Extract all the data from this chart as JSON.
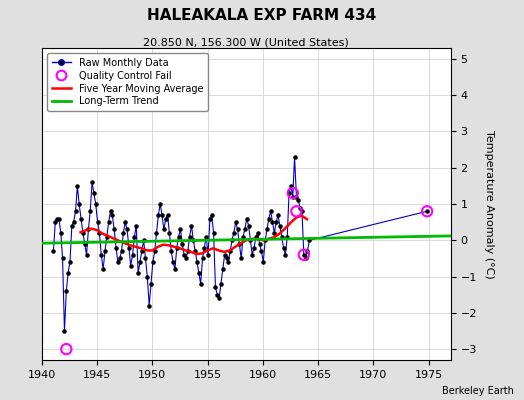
{
  "title": "HALEAKALA EXP FARM 434",
  "subtitle": "20.850 N, 156.300 W (United States)",
  "ylabel": "Temperature Anomaly (°C)",
  "credit": "Berkeley Earth",
  "xlim": [
    1940,
    1977
  ],
  "ylim": [
    -3.3,
    5.3
  ],
  "yticks": [
    -3,
    -2,
    -1,
    0,
    1,
    2,
    3,
    4,
    5
  ],
  "xticks": [
    1940,
    1945,
    1950,
    1955,
    1960,
    1965,
    1970,
    1975
  ],
  "bg_color": "#e0e0e0",
  "plot_bg_color": "#ffffff",
  "raw_color": "#0000cc",
  "raw_marker_color": "#000000",
  "qc_color": "#ff00ff",
  "ma_color": "#ff0000",
  "trend_color": "#00bb00",
  "raw_monthly": [
    [
      1941.04,
      -0.3
    ],
    [
      1941.21,
      0.5
    ],
    [
      1941.37,
      0.6
    ],
    [
      1941.54,
      0.6
    ],
    [
      1941.71,
      0.2
    ],
    [
      1941.87,
      -0.5
    ],
    [
      1942.04,
      -2.5
    ],
    [
      1942.21,
      -1.4
    ],
    [
      1942.37,
      -0.9
    ],
    [
      1942.54,
      -0.6
    ],
    [
      1942.71,
      0.4
    ],
    [
      1942.87,
      0.5
    ],
    [
      1943.04,
      0.8
    ],
    [
      1943.21,
      1.5
    ],
    [
      1943.37,
      1.0
    ],
    [
      1943.54,
      0.6
    ],
    [
      1943.71,
      0.2
    ],
    [
      1943.87,
      -0.1
    ],
    [
      1944.04,
      -0.4
    ],
    [
      1944.21,
      0.3
    ],
    [
      1944.37,
      0.8
    ],
    [
      1944.54,
      1.6
    ],
    [
      1944.71,
      1.3
    ],
    [
      1944.87,
      1.0
    ],
    [
      1945.04,
      0.5
    ],
    [
      1945.21,
      0.2
    ],
    [
      1945.37,
      -0.4
    ],
    [
      1945.54,
      -0.8
    ],
    [
      1945.71,
      -0.3
    ],
    [
      1945.87,
      0.1
    ],
    [
      1946.04,
      0.5
    ],
    [
      1946.21,
      0.8
    ],
    [
      1946.37,
      0.7
    ],
    [
      1946.54,
      0.3
    ],
    [
      1946.71,
      -0.2
    ],
    [
      1946.87,
      -0.6
    ],
    [
      1947.04,
      -0.5
    ],
    [
      1947.21,
      -0.3
    ],
    [
      1947.37,
      0.2
    ],
    [
      1947.54,
      0.5
    ],
    [
      1947.71,
      0.3
    ],
    [
      1947.87,
      -0.2
    ],
    [
      1948.04,
      -0.7
    ],
    [
      1948.21,
      -0.4
    ],
    [
      1948.37,
      0.1
    ],
    [
      1948.54,
      0.4
    ],
    [
      1948.71,
      -0.9
    ],
    [
      1948.87,
      -0.6
    ],
    [
      1949.04,
      -0.3
    ],
    [
      1949.21,
      0.0
    ],
    [
      1949.37,
      -0.5
    ],
    [
      1949.54,
      -1.0
    ],
    [
      1949.71,
      -1.8
    ],
    [
      1949.87,
      -1.2
    ],
    [
      1950.04,
      -0.6
    ],
    [
      1950.21,
      -0.3
    ],
    [
      1950.37,
      0.2
    ],
    [
      1950.54,
      0.7
    ],
    [
      1950.71,
      1.0
    ],
    [
      1950.87,
      0.7
    ],
    [
      1951.04,
      0.3
    ],
    [
      1951.21,
      0.6
    ],
    [
      1951.37,
      0.7
    ],
    [
      1951.54,
      0.2
    ],
    [
      1951.71,
      -0.3
    ],
    [
      1951.87,
      -0.6
    ],
    [
      1952.04,
      -0.8
    ],
    [
      1952.21,
      -0.2
    ],
    [
      1952.37,
      0.1
    ],
    [
      1952.54,
      0.3
    ],
    [
      1952.71,
      -0.1
    ],
    [
      1952.87,
      -0.4
    ],
    [
      1953.04,
      -0.5
    ],
    [
      1953.21,
      -0.3
    ],
    [
      1953.37,
      0.1
    ],
    [
      1953.54,
      0.4
    ],
    [
      1953.71,
      0.0
    ],
    [
      1953.87,
      -0.3
    ],
    [
      1954.04,
      -0.6
    ],
    [
      1954.21,
      -0.9
    ],
    [
      1954.37,
      -1.2
    ],
    [
      1954.54,
      -0.5
    ],
    [
      1954.71,
      -0.2
    ],
    [
      1954.87,
      0.1
    ],
    [
      1955.04,
      -0.4
    ],
    [
      1955.21,
      0.6
    ],
    [
      1955.37,
      0.7
    ],
    [
      1955.54,
      0.2
    ],
    [
      1955.71,
      -1.3
    ],
    [
      1955.87,
      -1.5
    ],
    [
      1956.04,
      -1.6
    ],
    [
      1956.21,
      -1.2
    ],
    [
      1956.37,
      -0.8
    ],
    [
      1956.54,
      -0.4
    ],
    [
      1956.71,
      -0.5
    ],
    [
      1956.87,
      -0.6
    ],
    [
      1957.04,
      -0.3
    ],
    [
      1957.21,
      0.0
    ],
    [
      1957.37,
      0.2
    ],
    [
      1957.54,
      0.5
    ],
    [
      1957.71,
      0.3
    ],
    [
      1957.87,
      -0.1
    ],
    [
      1958.04,
      -0.5
    ],
    [
      1958.21,
      0.1
    ],
    [
      1958.37,
      0.3
    ],
    [
      1958.54,
      0.6
    ],
    [
      1958.71,
      0.4
    ],
    [
      1958.87,
      0.0
    ],
    [
      1959.04,
      -0.4
    ],
    [
      1959.21,
      -0.2
    ],
    [
      1959.37,
      0.1
    ],
    [
      1959.54,
      0.2
    ],
    [
      1959.71,
      -0.1
    ],
    [
      1959.87,
      -0.3
    ],
    [
      1960.04,
      -0.6
    ],
    [
      1960.21,
      0.0
    ],
    [
      1960.37,
      0.3
    ],
    [
      1960.54,
      0.6
    ],
    [
      1960.71,
      0.8
    ],
    [
      1960.87,
      0.5
    ],
    [
      1961.04,
      0.2
    ],
    [
      1961.21,
      0.5
    ],
    [
      1961.37,
      0.7
    ],
    [
      1961.54,
      0.4
    ],
    [
      1961.71,
      0.1
    ],
    [
      1961.87,
      -0.2
    ],
    [
      1962.04,
      -0.4
    ],
    [
      1962.21,
      0.1
    ],
    [
      1962.37,
      1.3
    ],
    [
      1962.54,
      1.5
    ],
    [
      1962.71,
      1.2
    ],
    [
      1962.87,
      2.3
    ],
    [
      1963.04,
      1.2
    ],
    [
      1963.21,
      1.1
    ],
    [
      1963.37,
      0.9
    ],
    [
      1963.54,
      0.8
    ],
    [
      1963.71,
      -0.4
    ],
    [
      1963.87,
      -0.5
    ],
    [
      1964.04,
      -0.3
    ],
    [
      1964.21,
      0.0
    ],
    [
      1974.87,
      0.8
    ]
  ],
  "qc_fail_points": [
    [
      1942.21,
      -3.0
    ],
    [
      1962.71,
      1.3
    ],
    [
      1963.04,
      0.8
    ],
    [
      1963.71,
      -0.4
    ],
    [
      1974.87,
      0.8
    ]
  ],
  "moving_avg": [
    [
      1943.5,
      0.22
    ],
    [
      1944.0,
      0.28
    ],
    [
      1944.5,
      0.32
    ],
    [
      1945.0,
      0.28
    ],
    [
      1945.5,
      0.18
    ],
    [
      1946.0,
      0.12
    ],
    [
      1946.5,
      0.05
    ],
    [
      1947.0,
      -0.02
    ],
    [
      1947.5,
      -0.08
    ],
    [
      1948.0,
      -0.14
    ],
    [
      1948.5,
      -0.18
    ],
    [
      1949.0,
      -0.22
    ],
    [
      1949.5,
      -0.28
    ],
    [
      1950.0,
      -0.28
    ],
    [
      1950.5,
      -0.18
    ],
    [
      1951.0,
      -0.12
    ],
    [
      1951.5,
      -0.14
    ],
    [
      1952.0,
      -0.18
    ],
    [
      1952.5,
      -0.22
    ],
    [
      1953.0,
      -0.28
    ],
    [
      1953.5,
      -0.32
    ],
    [
      1954.0,
      -0.38
    ],
    [
      1954.5,
      -0.36
    ],
    [
      1955.0,
      -0.28
    ],
    [
      1955.5,
      -0.22
    ],
    [
      1956.0,
      -0.28
    ],
    [
      1956.5,
      -0.32
    ],
    [
      1957.0,
      -0.28
    ],
    [
      1957.5,
      -0.18
    ],
    [
      1958.0,
      -0.08
    ],
    [
      1958.5,
      0.0
    ],
    [
      1959.0,
      0.04
    ],
    [
      1959.5,
      0.04
    ],
    [
      1960.0,
      0.0
    ],
    [
      1960.5,
      0.04
    ],
    [
      1961.0,
      0.08
    ],
    [
      1961.5,
      0.18
    ],
    [
      1962.0,
      0.32
    ],
    [
      1962.5,
      0.48
    ],
    [
      1963.0,
      0.62
    ],
    [
      1963.5,
      0.68
    ],
    [
      1964.0,
      0.58
    ]
  ],
  "trend_line": [
    [
      1940,
      -0.08
    ],
    [
      1977,
      0.12
    ]
  ]
}
